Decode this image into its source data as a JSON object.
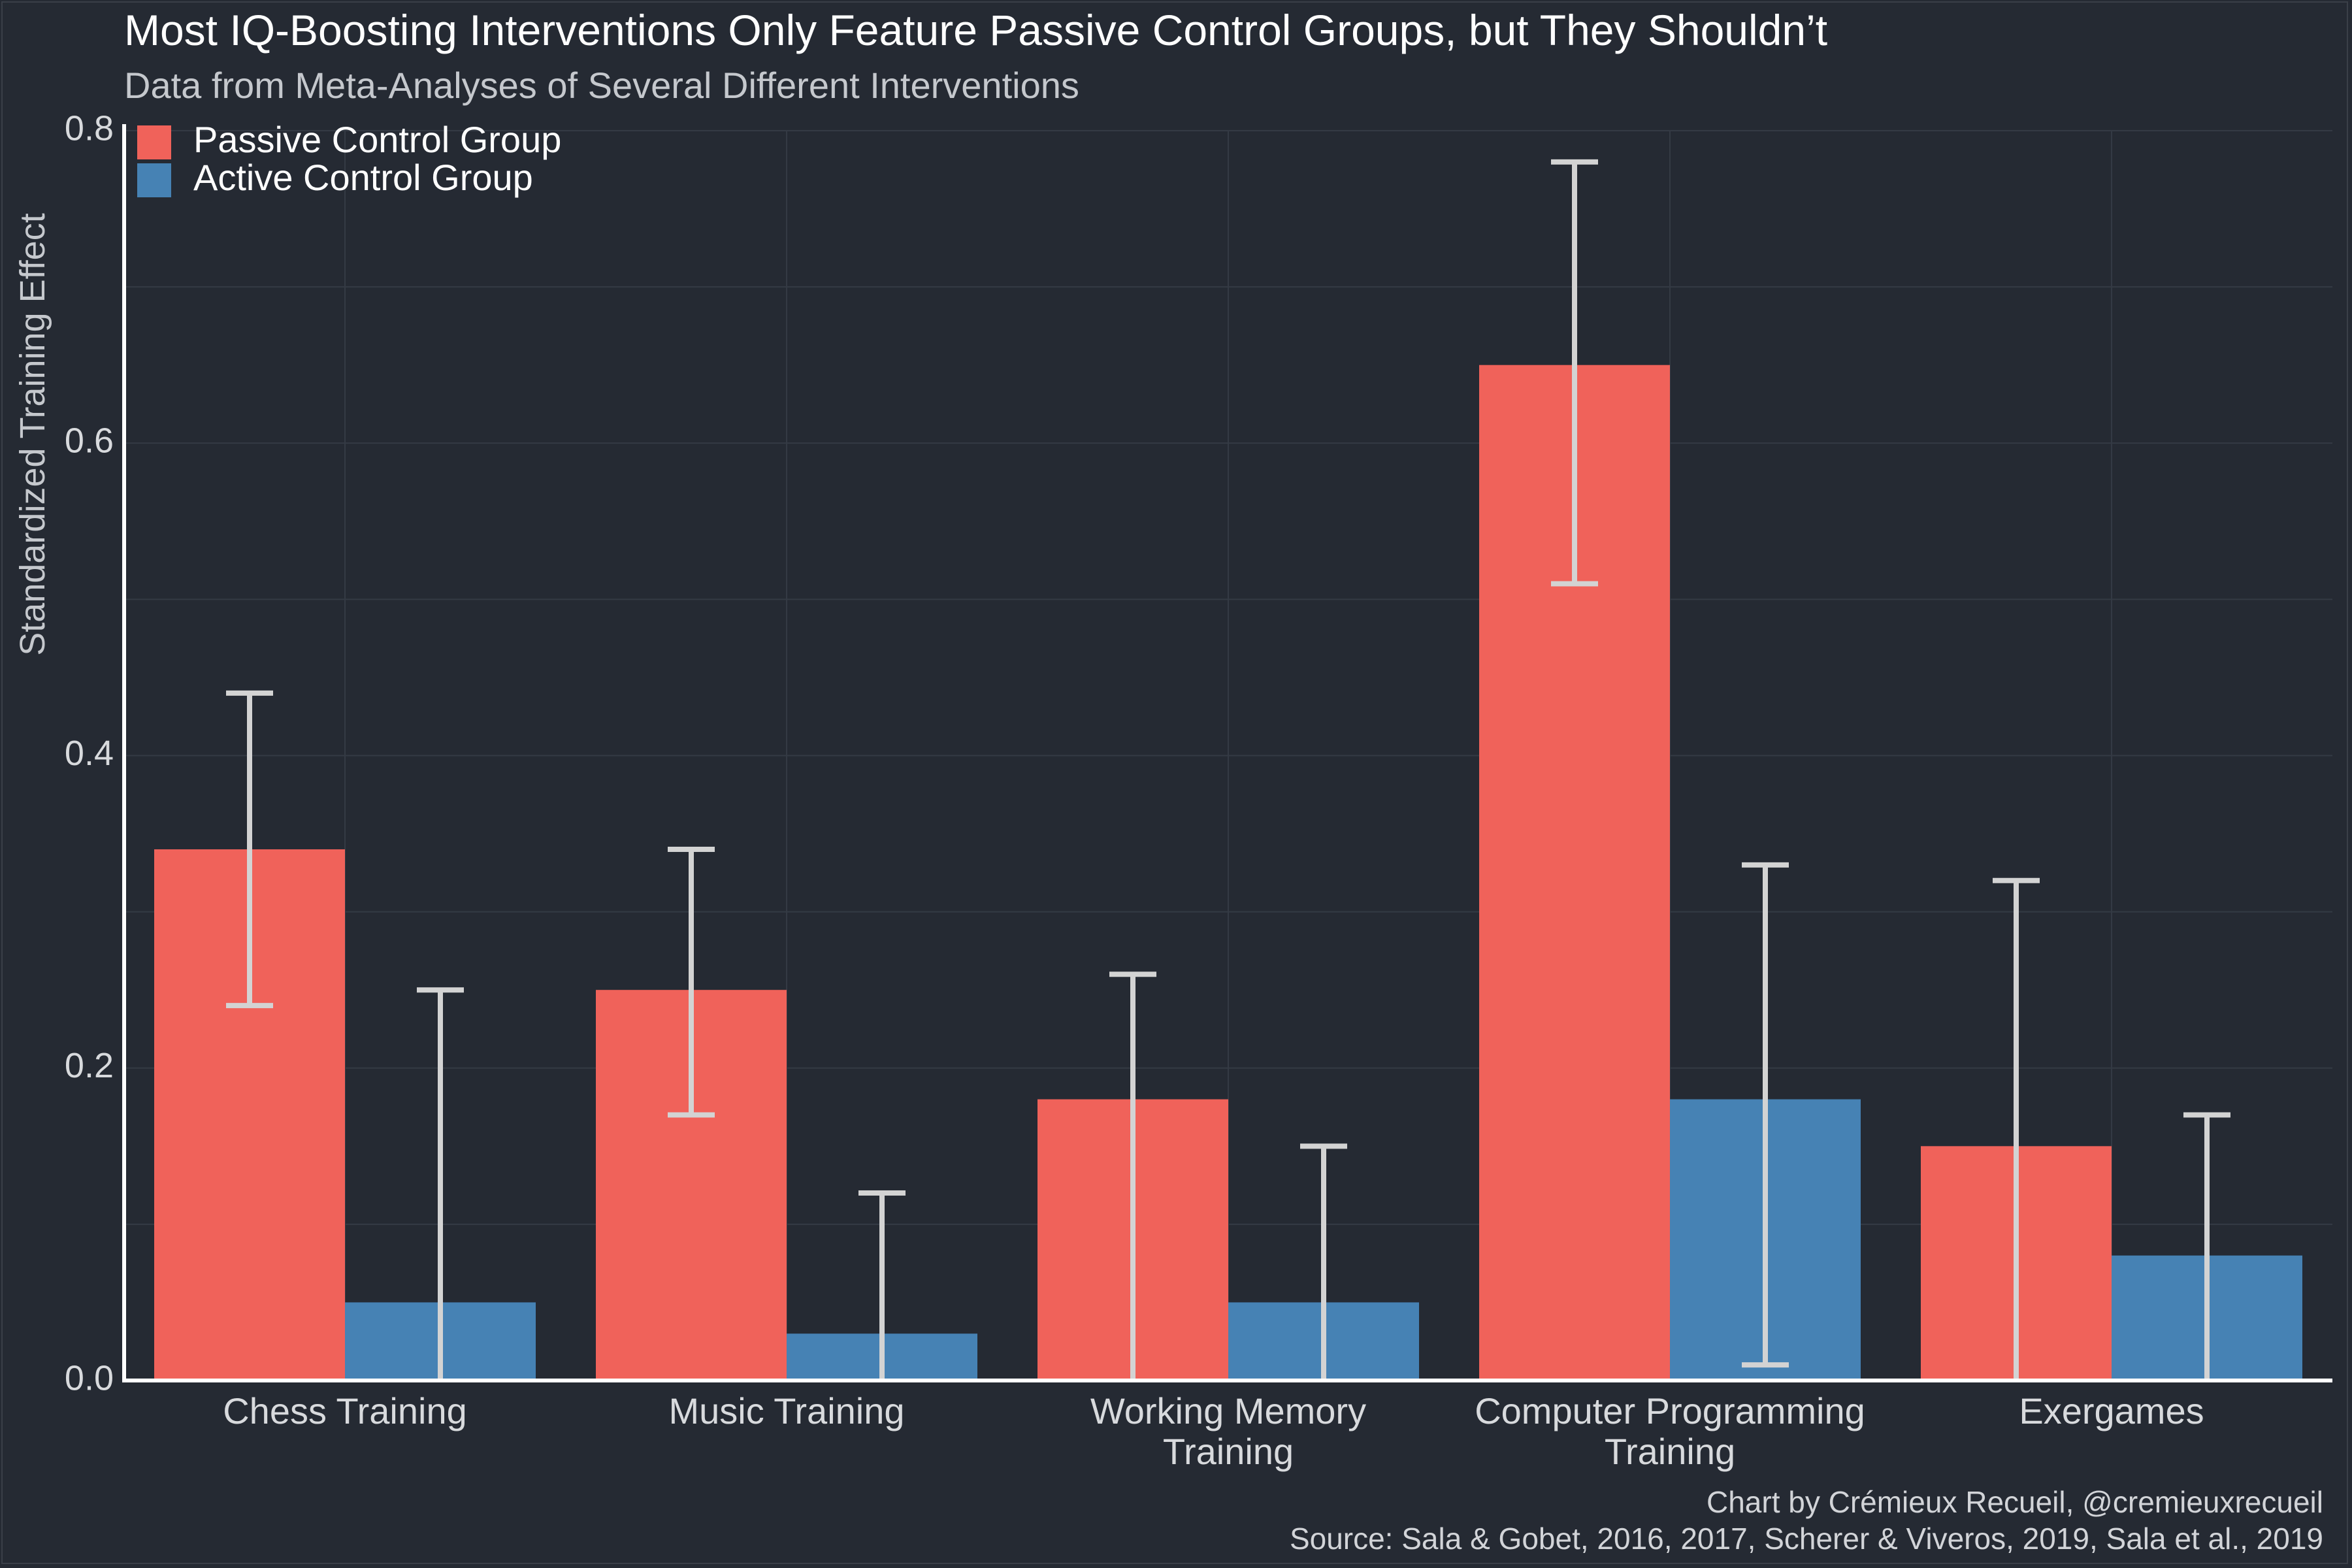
{
  "title": "Most IQ-Boosting Interventions Only Feature Passive Control Groups, but They Shouldn’t",
  "subtitle": "Data from Meta-Analyses of Several Different Interventions",
  "caption_line1": "Chart by Crémieux Recueil, @cremieuxrecueil",
  "caption_line2": "Source: Sala & Gobet, 2016, 2017, Scherer & Viveros, 2019, Sala et al., 2019",
  "colors": {
    "background": "#252a33",
    "passive": "#f0625a",
    "active": "#4682b4",
    "error_bar": "#d3d3d3",
    "axis": "#ffffff",
    "grid": "#343a44"
  },
  "chart_data": {
    "type": "bar",
    "title": "Most IQ-Boosting Interventions Only Feature Passive Control Groups, but They Shouldn’t",
    "subtitle": "Data from Meta-Analyses of Several Different Interventions",
    "xlabel": "",
    "ylabel": "Standardized Training Effect",
    "ylim": [
      0,
      0.8
    ],
    "yticks": [
      "0.0",
      "0.2",
      "0.4",
      "0.6",
      "0.8"
    ],
    "ytick_values": [
      0,
      0.2,
      0.4,
      0.6,
      0.8
    ],
    "categories": [
      [
        "Chess Training"
      ],
      [
        "Music Training"
      ],
      [
        "Working Memory",
        "Training"
      ],
      [
        "Computer Programming",
        "Training"
      ],
      [
        "Exergames"
      ]
    ],
    "legend_position": "top-left",
    "series": [
      {
        "name": "Passive Control Group",
        "color": "#f0625a",
        "values": [
          0.34,
          0.25,
          0.18,
          0.65,
          0.15
        ],
        "ci_low": [
          0.24,
          0.17,
          0.0,
          0.51,
          0.0
        ],
        "ci_high": [
          0.44,
          0.34,
          0.26,
          0.78,
          0.32
        ]
      },
      {
        "name": "Active Control Group",
        "color": "#4682b4",
        "values": [
          0.05,
          0.03,
          0.05,
          0.18,
          0.08
        ],
        "ci_low": [
          0.0,
          0.0,
          0.0,
          0.01,
          0.0
        ],
        "ci_high": [
          0.25,
          0.12,
          0.15,
          0.33,
          0.17
        ]
      }
    ]
  }
}
